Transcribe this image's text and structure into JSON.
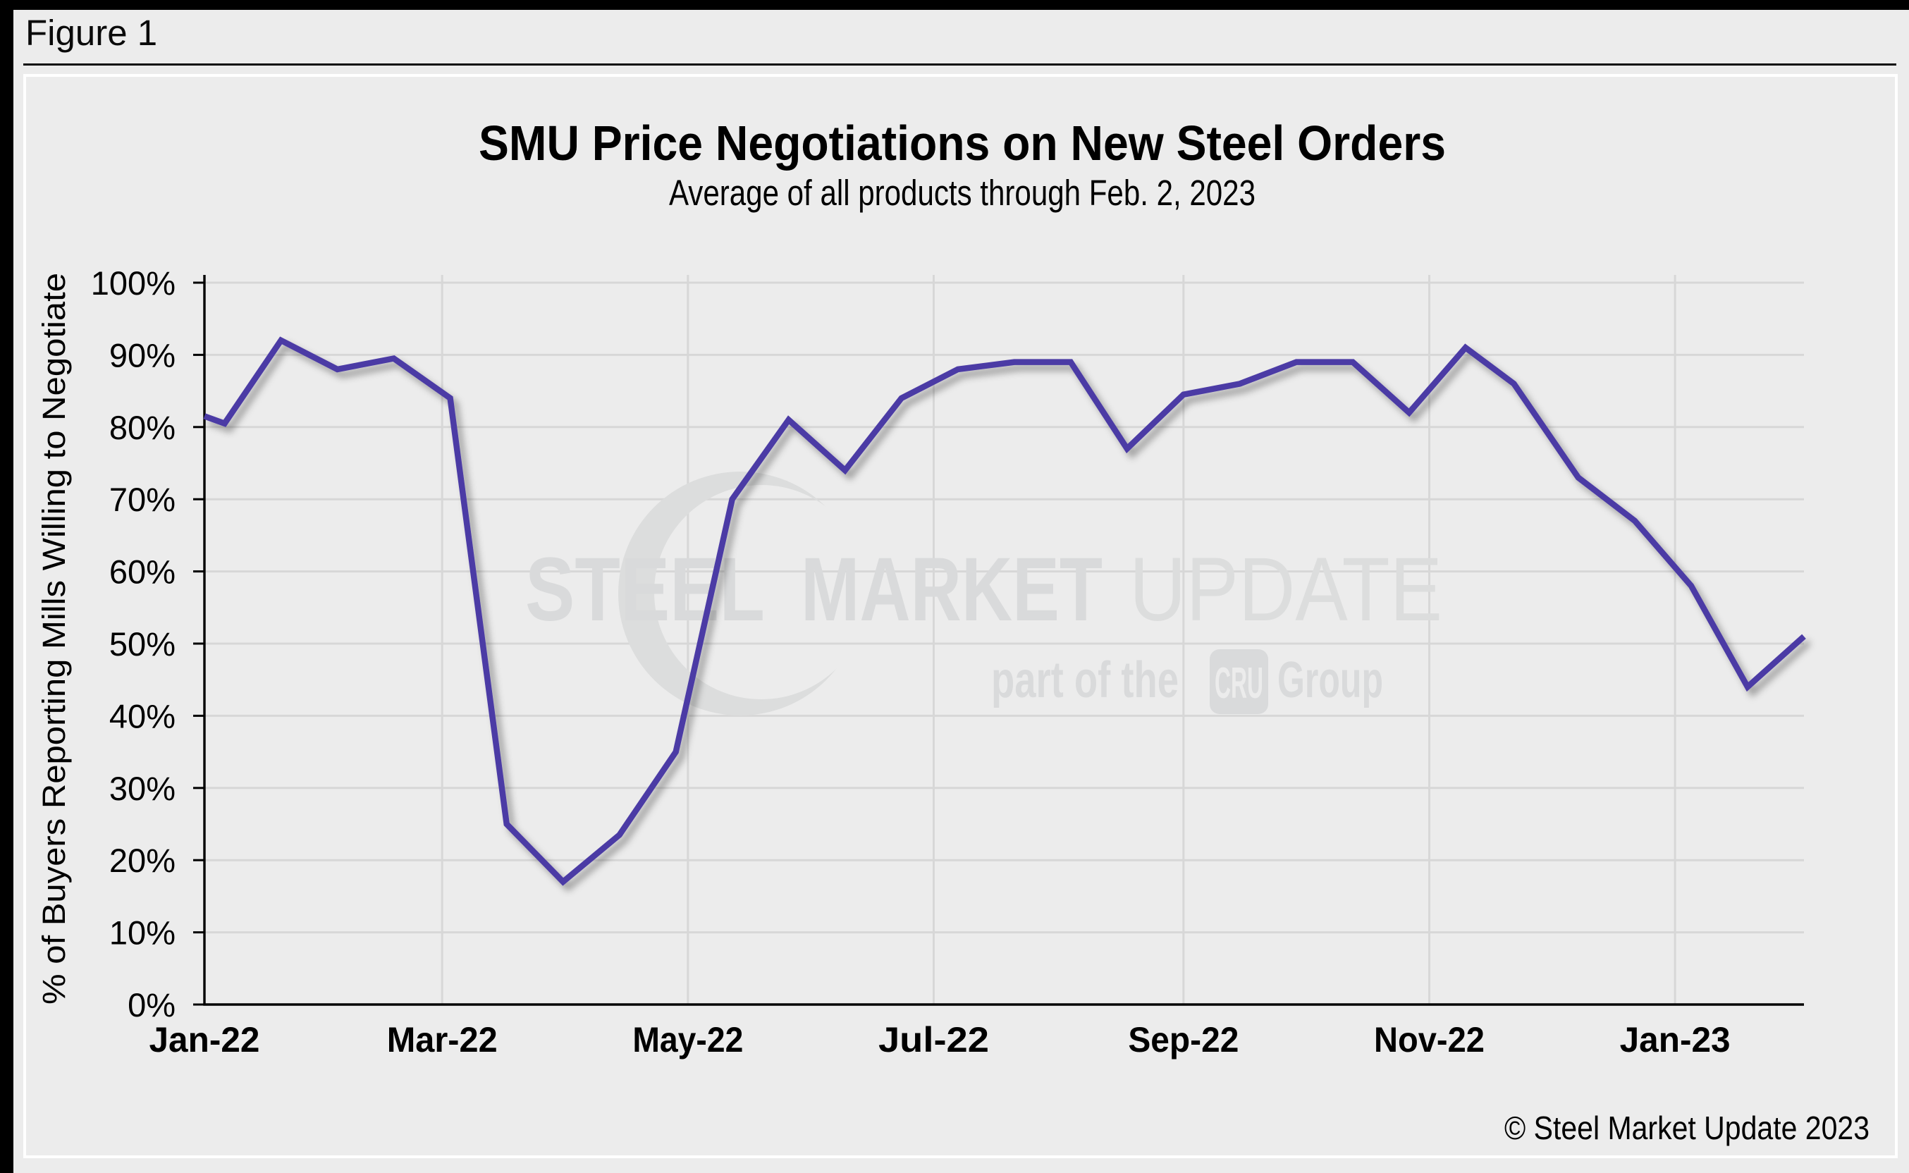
{
  "figure": {
    "label": "Figure 1"
  },
  "watermark": {
    "word1": "STEEL",
    "word2": "MARKET",
    "word3": "UPDATE",
    "tagline_prefix": "part of the",
    "cru": "CRU",
    "tagline_suffix": "Group"
  },
  "chart_data": {
    "type": "line",
    "title": "SMU Price Negotiations on New Steel Orders",
    "subtitle": "Average of all products through Feb. 2, 2023",
    "ylabel": "% of Buyers Reporting Mills Willing to Negotiate",
    "xlabel": "",
    "copyright": "© Steel Market Update 2023",
    "ylim": [
      0,
      100
    ],
    "x_range": [
      "2022-01-01",
      "2023-02-02"
    ],
    "grid": true,
    "legend": false,
    "line_color": "#4b3ba5",
    "y_ticks": [
      "0%",
      "10%",
      "20%",
      "30%",
      "40%",
      "50%",
      "60%",
      "70%",
      "80%",
      "90%",
      "100%"
    ],
    "x_ticks": [
      {
        "label": "Jan-22",
        "date": "2022-01-01"
      },
      {
        "label": "Mar-22",
        "date": "2022-03-01"
      },
      {
        "label": "May-22",
        "date": "2022-05-01"
      },
      {
        "label": "Jul-22",
        "date": "2022-07-01"
      },
      {
        "label": "Sep-22",
        "date": "2022-09-01"
      },
      {
        "label": "Nov-22",
        "date": "2022-11-01"
      },
      {
        "label": "Jan-23",
        "date": "2023-01-01"
      }
    ],
    "series": [
      {
        "name": "% of Buyers Reporting Mills Willing to Negotiate",
        "points": [
          {
            "date": "2022-01-01",
            "value": 81.5
          },
          {
            "date": "2022-01-06",
            "value": 80.5
          },
          {
            "date": "2022-01-20",
            "value": 92
          },
          {
            "date": "2022-02-03",
            "value": 88
          },
          {
            "date": "2022-02-17",
            "value": 89.5
          },
          {
            "date": "2022-03-03",
            "value": 84
          },
          {
            "date": "2022-03-17",
            "value": 25
          },
          {
            "date": "2022-03-31",
            "value": 17
          },
          {
            "date": "2022-04-14",
            "value": 23.5
          },
          {
            "date": "2022-04-28",
            "value": 35
          },
          {
            "date": "2022-05-12",
            "value": 70
          },
          {
            "date": "2022-05-26",
            "value": 81
          },
          {
            "date": "2022-06-09",
            "value": 74
          },
          {
            "date": "2022-06-23",
            "value": 84
          },
          {
            "date": "2022-07-07",
            "value": 88
          },
          {
            "date": "2022-07-21",
            "value": 89
          },
          {
            "date": "2022-08-04",
            "value": 89
          },
          {
            "date": "2022-08-18",
            "value": 77
          },
          {
            "date": "2022-09-01",
            "value": 84.5
          },
          {
            "date": "2022-09-15",
            "value": 86
          },
          {
            "date": "2022-09-29",
            "value": 89
          },
          {
            "date": "2022-10-13",
            "value": 89
          },
          {
            "date": "2022-10-27",
            "value": 82
          },
          {
            "date": "2022-11-10",
            "value": 91
          },
          {
            "date": "2022-11-22",
            "value": 86
          },
          {
            "date": "2022-12-08",
            "value": 73
          },
          {
            "date": "2022-12-22",
            "value": 67
          },
          {
            "date": "2023-01-05",
            "value": 58
          },
          {
            "date": "2023-01-19",
            "value": 44
          },
          {
            "date": "2023-02-02",
            "value": 51
          }
        ]
      }
    ]
  }
}
